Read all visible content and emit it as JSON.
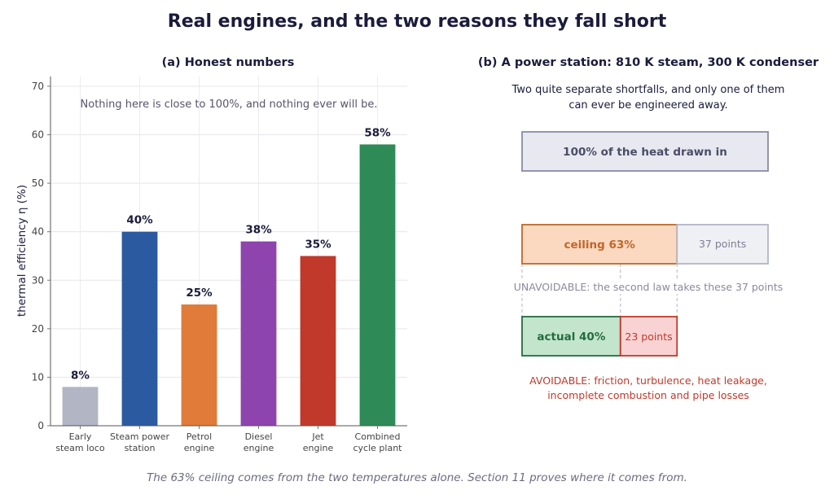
{
  "main_title": "Real engines, and the two reasons they fall short",
  "footer_note": "The 63% ceiling comes from the two temperatures alone. Section 11 proves where it comes from.",
  "chart_data": [
    {
      "type": "bar",
      "title": "(a) Honest numbers",
      "annotation": "Nothing here is close to 100%, and nothing ever will be.",
      "ylabel": "thermal efficiency η  (%)",
      "xlabel": "",
      "ylim": [
        0,
        72
      ],
      "yticks": [
        0,
        10,
        20,
        30,
        40,
        50,
        60,
        70
      ],
      "grid": true,
      "categories": [
        [
          "Early",
          "steam loco"
        ],
        [
          "Steam power",
          "station"
        ],
        [
          "Petrol",
          "engine"
        ],
        [
          "Diesel",
          "engine"
        ],
        [
          "Jet",
          "engine"
        ],
        [
          "Combined",
          "cycle plant"
        ]
      ],
      "values": [
        8,
        40,
        25,
        38,
        35,
        58
      ],
      "value_labels": [
        "8%",
        "40%",
        "25%",
        "38%",
        "35%",
        "58%"
      ],
      "colors": [
        "#b1b5c4",
        "#2c5aa0",
        "#e07b39",
        "#8e44ad",
        "#c0392b",
        "#2e8b57"
      ]
    },
    {
      "type": "diagram",
      "title": "(b) A power station: 810 K steam, 300 K condenser",
      "subtitle_lines": [
        "Two quite separate shortfalls, and only one of them",
        "can ever be engineered away."
      ],
      "heat_in_label": "100% of the heat drawn in",
      "ceiling_percent": 63,
      "ceiling_label": "ceiling 63%",
      "ceiling_remainder_label": "37 points",
      "unavoidable_note": "UNAVOIDABLE: the second law takes these 37 points",
      "actual_percent": 40,
      "actual_label": "actual 40%",
      "avoidable_points_label": "23 points",
      "avoidable_note_lines": [
        "AVOIDABLE: friction, turbulence, heat leakage,",
        "incomplete combustion and pipe losses"
      ],
      "colors": {
        "heat_fill": "#e8e9f0",
        "heat_stroke": "#8a8aa3",
        "heat_text": "#4a4d66",
        "ceiling_fill": "#fbd9c0",
        "ceiling_stroke": "#c0662a",
        "ceiling_text": "#c0662a",
        "gray_fill": "#eff0f4",
        "gray_stroke": "#b3b5c7",
        "gray_text": "#7d7f93",
        "actual_fill": "#c2e5cc",
        "actual_stroke": "#246b3f",
        "actual_text": "#246b3f",
        "avoid_fill": "#f9d3d3",
        "avoid_stroke": "#c0392b",
        "avoid_text": "#c0392b",
        "unavoidable_text": "#8a8a9e"
      }
    }
  ]
}
